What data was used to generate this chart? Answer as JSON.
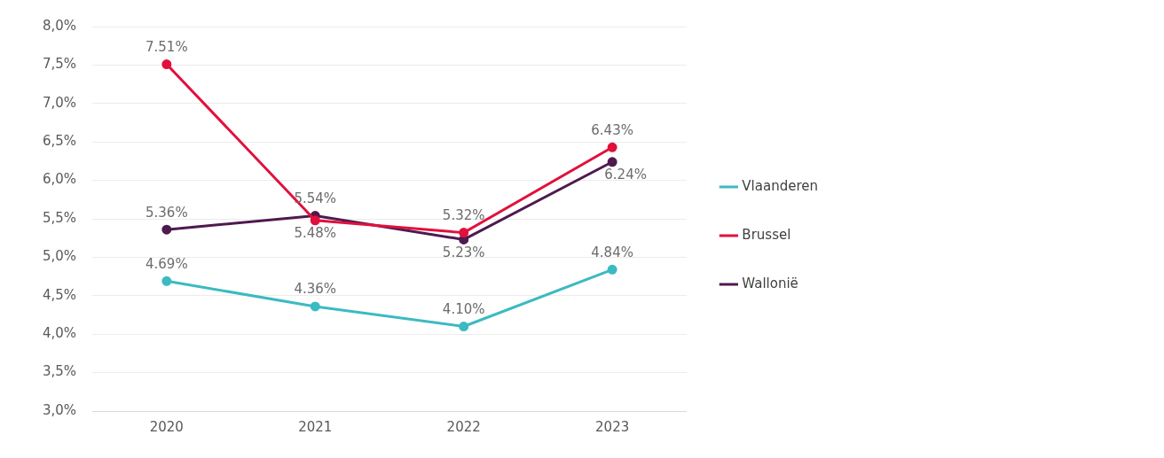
{
  "chart_data": {
    "type": "line",
    "categories": [
      "2020",
      "2021",
      "2022",
      "2023"
    ],
    "series": [
      {
        "name": "Vlaanderen",
        "color": "#3bbac2",
        "values": [
          4.69,
          4.36,
          4.1,
          4.84
        ],
        "value_labels": [
          "4.69%",
          "4.36%",
          "4.10%",
          "4.84%"
        ]
      },
      {
        "name": "Brussel",
        "color": "#e2103c",
        "values": [
          7.51,
          5.48,
          5.32,
          6.43
        ],
        "value_labels": [
          "7.51%",
          "5.48%",
          "5.32%",
          "6.43%"
        ]
      },
      {
        "name": "Wallonië",
        "color": "#4e1a4f",
        "values": [
          5.36,
          5.54,
          5.23,
          6.24
        ],
        "value_labels": [
          "5.36%",
          "5.54%",
          "5.23%",
          "6.24%"
        ]
      }
    ],
    "ylim": [
      3,
      8
    ],
    "yticks": [
      {
        "value": 3,
        "label": "3,0%"
      },
      {
        "value": 3.5,
        "label": "3,5%"
      },
      {
        "value": 4,
        "label": "4,0%"
      },
      {
        "value": 4.5,
        "label": "4,5%"
      },
      {
        "value": 5,
        "label": "5,0%"
      },
      {
        "value": 5.5,
        "label": "5,5%"
      },
      {
        "value": 6,
        "label": "6,0%"
      },
      {
        "value": 6.5,
        "label": "6,5%"
      },
      {
        "value": 7,
        "label": "7,0%"
      },
      {
        "value": 7.5,
        "label": "7,5%"
      },
      {
        "value": 8,
        "label": "8,0%"
      }
    ],
    "grid": "y",
    "legend": "right",
    "marker": "circle",
    "line_style": "solid"
  }
}
